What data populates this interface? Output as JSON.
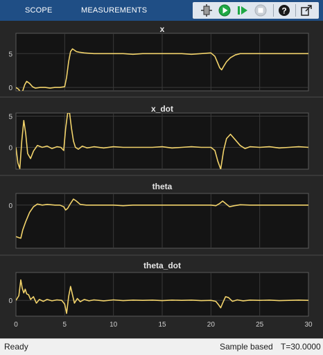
{
  "toolbar": {
    "tabs": [
      "SCOPE",
      "MEASUREMENTS"
    ],
    "icons": [
      "highlight-simulink-block-icon",
      "run-icon",
      "step-forward-icon",
      "stop-icon",
      "help-icon",
      "undock-icon"
    ]
  },
  "status": {
    "left": "Ready",
    "mode": "Sample based",
    "time": "T=30.0000"
  },
  "colors": {
    "toolbar_bg": "#1f4e85",
    "plot_bg": "#141414",
    "figure_bg": "#262626",
    "trace": "#f2d36b",
    "run": "#1fa844"
  },
  "chart_data": [
    {
      "type": "line",
      "title": "x",
      "xlim": [
        0,
        30
      ],
      "ylim": [
        -0.5,
        8
      ],
      "yticks": [
        0,
        5
      ],
      "grid": true,
      "x": [
        0,
        0.3,
        0.5,
        0.7,
        0.9,
        1.1,
        1.4,
        1.7,
        2.0,
        2.5,
        3,
        3.5,
        4,
        4.5,
        5,
        5.2,
        5.4,
        5.6,
        5.8,
        6.0,
        6.2,
        6.5,
        7,
        8,
        9,
        10,
        11,
        12,
        13,
        14,
        15,
        16,
        17,
        18,
        19,
        20,
        20.4,
        20.7,
        20.9,
        21.1,
        21.3,
        21.6,
        22.0,
        22.5,
        23,
        23.5,
        24,
        25,
        26,
        27,
        28,
        29,
        30
      ],
      "values": [
        0.0,
        -0.3,
        -0.9,
        -0.5,
        0.4,
        0.9,
        0.6,
        0.1,
        -0.1,
        0.0,
        0.0,
        -0.1,
        0.0,
        0.0,
        0.1,
        1.5,
        3.8,
        5.3,
        5.7,
        5.5,
        5.3,
        5.2,
        5.1,
        5.0,
        5.0,
        5.0,
        5.0,
        4.9,
        5.0,
        5.0,
        5.0,
        5.0,
        5.0,
        4.9,
        5.0,
        5.1,
        4.6,
        3.6,
        2.9,
        2.6,
        3.1,
        3.8,
        4.4,
        4.8,
        5.0,
        5.0,
        5.0,
        5.0,
        5.0,
        5.0,
        5.0,
        5.0,
        5.0
      ]
    },
    {
      "type": "line",
      "title": "x_dot",
      "xlim": [
        0,
        30
      ],
      "ylim": [
        -3.5,
        5.5
      ],
      "yticks": [
        0,
        5
      ],
      "grid": true,
      "x": [
        0,
        0.2,
        0.4,
        0.6,
        0.8,
        1.0,
        1.2,
        1.5,
        1.8,
        2.2,
        2.7,
        3.2,
        3.7,
        4.2,
        4.6,
        4.9,
        5.1,
        5.3,
        5.5,
        5.7,
        5.9,
        6.1,
        6.4,
        6.8,
        7.3,
        8,
        9,
        10,
        11,
        12,
        13,
        14,
        15,
        16,
        17,
        18,
        19,
        20,
        20.4,
        20.7,
        21.0,
        21.3,
        21.6,
        22.0,
        22.5,
        23,
        23.5,
        24,
        25,
        26,
        27,
        28,
        29,
        30
      ],
      "values": [
        0.0,
        -2.5,
        -3.4,
        1.0,
        4.3,
        2.2,
        -1.0,
        -1.8,
        -0.6,
        0.3,
        0.0,
        0.2,
        -0.2,
        0.1,
        0.0,
        -0.5,
        3.0,
        5.5,
        5.5,
        3.0,
        1.0,
        0.0,
        -0.3,
        0.2,
        -0.1,
        0.1,
        -0.1,
        0.1,
        0.0,
        0.0,
        0.0,
        0.0,
        0.1,
        -0.1,
        0.0,
        0.1,
        0.0,
        0.0,
        -0.5,
        -2.2,
        -3.5,
        -0.5,
        1.4,
        2.1,
        1.2,
        0.3,
        -0.2,
        0.1,
        0.0,
        0.1,
        -0.1,
        0.0,
        0.1,
        0.0
      ]
    },
    {
      "type": "line",
      "title": "theta",
      "xlim": [
        0,
        30
      ],
      "ylim": [
        -1.3,
        0.35
      ],
      "yticks": [
        0
      ],
      "grid": true,
      "x": [
        0,
        0.3,
        0.5,
        0.7,
        1.0,
        1.4,
        1.8,
        2.2,
        2.7,
        3.2,
        4,
        4.5,
        4.9,
        5.1,
        5.3,
        5.6,
        5.9,
        6.2,
        6.6,
        7.2,
        8,
        9,
        10,
        11,
        12,
        13,
        14,
        15,
        16,
        17,
        18,
        19,
        20,
        20.5,
        20.9,
        21.2,
        21.5,
        21.9,
        22.4,
        23,
        24,
        25,
        26,
        27,
        28,
        29,
        30
      ],
      "values": [
        -0.95,
        -0.98,
        -1.0,
        -0.75,
        -0.5,
        -0.22,
        -0.05,
        0.03,
        0.0,
        0.02,
        0.0,
        0.0,
        -0.05,
        -0.15,
        -0.1,
        0.05,
        0.18,
        0.12,
        0.02,
        0.0,
        0.0,
        0.0,
        0.0,
        -0.02,
        0.0,
        0.0,
        0.0,
        0.0,
        0.0,
        0.0,
        0.0,
        0.0,
        0.0,
        -0.02,
        0.05,
        0.12,
        0.05,
        -0.05,
        -0.02,
        0.01,
        0.0,
        0.0,
        0.0,
        0.0,
        0.0,
        0.0,
        0.0
      ]
    },
    {
      "type": "line",
      "title": "theta_dot",
      "xlim": [
        0,
        30
      ],
      "ylim": [
        -1.7,
        3.0
      ],
      "yticks": [
        0
      ],
      "grid": true,
      "xlabel_ticks": [
        0,
        5,
        10,
        15,
        20,
        25,
        30
      ],
      "x": [
        0,
        0.3,
        0.5,
        0.65,
        0.8,
        0.95,
        1.1,
        1.3,
        1.5,
        1.8,
        2.1,
        2.4,
        2.8,
        3.2,
        3.7,
        4.2,
        4.7,
        5.0,
        5.2,
        5.4,
        5.6,
        5.8,
        6.0,
        6.3,
        6.6,
        7.0,
        7.5,
        8,
        9,
        10,
        11,
        12,
        13,
        14,
        15,
        16,
        17,
        18,
        19,
        20,
        20.5,
        20.8,
        21.0,
        21.2,
        21.5,
        21.8,
        22.2,
        22.7,
        23.3,
        24,
        25,
        26,
        27,
        28,
        29,
        30
      ],
      "values": [
        0.0,
        0.5,
        2.2,
        1.3,
        0.8,
        1.2,
        0.7,
        0.6,
        0.1,
        0.4,
        -0.3,
        0.1,
        -0.1,
        0.1,
        -0.05,
        0.05,
        0.0,
        -0.4,
        -1.4,
        0.4,
        1.5,
        0.6,
        -0.3,
        0.2,
        -0.15,
        0.1,
        -0.05,
        0.05,
        -0.05,
        0.05,
        -0.03,
        0.03,
        0.0,
        0.03,
        -0.03,
        0.03,
        0.0,
        0.03,
        -0.03,
        0.0,
        -0.1,
        -0.5,
        -0.8,
        -0.3,
        0.4,
        0.3,
        -0.1,
        0.05,
        -0.05,
        0.03,
        0.0,
        0.03,
        -0.03,
        0.0,
        0.03,
        0.0
      ]
    }
  ]
}
